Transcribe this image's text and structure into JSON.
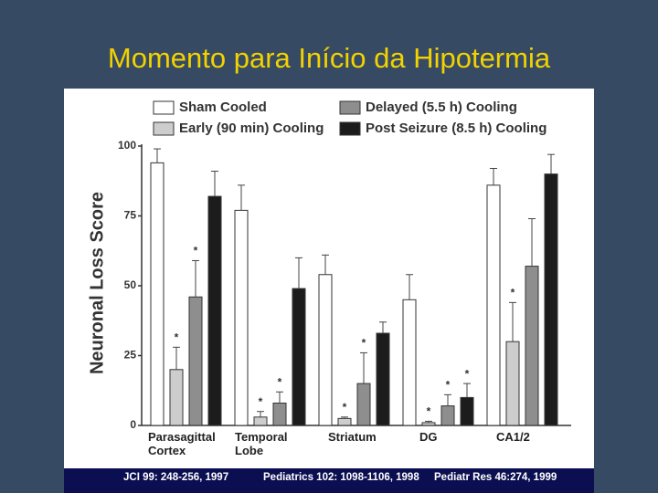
{
  "slide_title": "Momento para Início da Hipotermia",
  "citations": [
    "JCI 99: 248-256, 1997",
    "Pediatrics 102: 1098-1106, 1998",
    "Pediatr Res 46:274, 1999"
  ],
  "chart_data": {
    "type": "bar",
    "y_label": "Neuronal Loss Score",
    "categories": [
      "Parasagittal Cortex",
      "Temporal Lobe",
      "Striatum",
      "DG",
      "CA1/2"
    ],
    "ylim": [
      0,
      100
    ],
    "yticks": [
      0,
      25,
      50,
      75,
      100
    ],
    "series": [
      {
        "name": "Sham Cooled",
        "color": "#ffffff",
        "values": [
          94,
          77,
          54,
          45,
          86
        ],
        "errors": [
          5,
          9,
          7,
          9,
          6
        ],
        "markers": [
          null,
          null,
          null,
          null,
          null
        ]
      },
      {
        "name": "Early (90 min) Cooling",
        "color": "#cdcdcd",
        "values": [
          20,
          3,
          2.5,
          1,
          30
        ],
        "errors": [
          8,
          2,
          0.5,
          0.5,
          14
        ],
        "markers": [
          "*",
          "*",
          "*",
          "*",
          "*"
        ]
      },
      {
        "name": "Delayed (5.5 h) Cooling",
        "color": "#8e8e8e",
        "values": [
          46,
          8,
          15,
          7,
          57
        ],
        "errors": [
          13,
          4,
          11,
          4,
          17
        ],
        "markers": [
          "*",
          "*",
          "*",
          "*",
          null
        ]
      },
      {
        "name": "Post Seizure (8.5 h) Cooling",
        "color": "#1c1c1c",
        "values": [
          82,
          49,
          33,
          10,
          90
        ],
        "errors": [
          9,
          11,
          4,
          5,
          7
        ],
        "markers": [
          null,
          null,
          null,
          "*",
          null
        ]
      }
    ]
  }
}
